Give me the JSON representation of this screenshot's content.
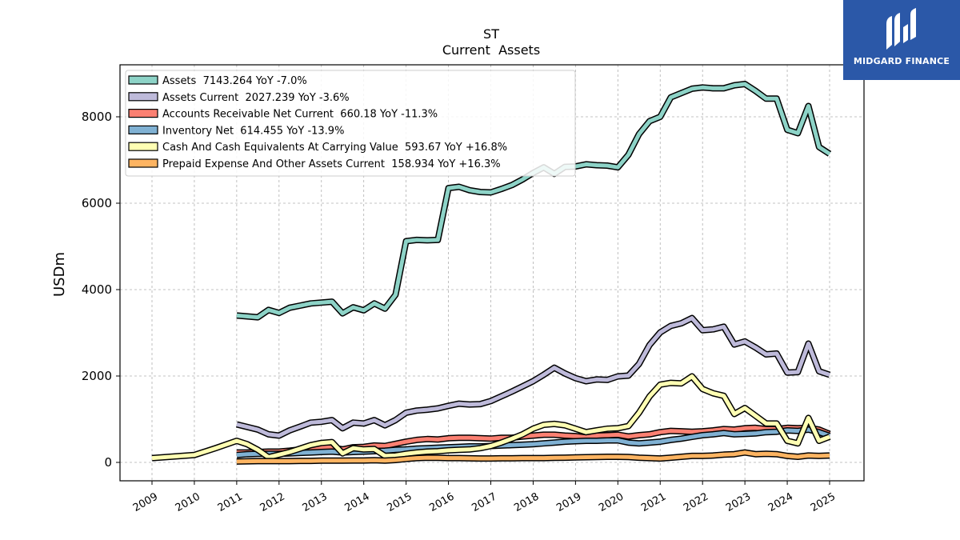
{
  "brand": {
    "name": "MIDGARD FINANCE",
    "logo_icon": "midgard-logo-icon",
    "color": "#2b58a8"
  },
  "chart_data": {
    "type": "line",
    "title": "ST",
    "subtitle": "Current  Assets",
    "xlabel": "",
    "ylabel": "USDm",
    "xlim": [
      2008.25,
      2025.85
    ],
    "ylim": [
      -420,
      9200
    ],
    "yticks": [
      0,
      2000,
      4000,
      6000,
      8000
    ],
    "xticks": [
      "2009",
      "2010",
      "2011",
      "2012",
      "2013",
      "2014",
      "2015",
      "2016",
      "2017",
      "2018",
      "2019",
      "2020",
      "2021",
      "2022",
      "2023",
      "2024",
      "2025"
    ],
    "grid": true,
    "legend_position": "top-left",
    "series": [
      {
        "name": "Assets",
        "legend": "Assets  7143.264 YoY -7.0%",
        "color": "#8dd3c7",
        "x": [
          2011.0,
          2011.25,
          2011.5,
          2011.75,
          2012.0,
          2012.25,
          2012.5,
          2012.75,
          2013.0,
          2013.25,
          2013.5,
          2013.75,
          2014.0,
          2014.25,
          2014.5,
          2014.75,
          2015.0,
          2015.25,
          2015.5,
          2015.75,
          2016.0,
          2016.25,
          2016.5,
          2016.75,
          2017.0,
          2017.25,
          2017.5,
          2017.75,
          2018.0,
          2018.25,
          2018.5,
          2018.75,
          2019.0,
          2019.25,
          2019.5,
          2019.75,
          2020.0,
          2020.25,
          2020.5,
          2020.75,
          2021.0,
          2021.25,
          2021.5,
          2021.75,
          2022.0,
          2022.25,
          2022.5,
          2022.75,
          2023.0,
          2023.25,
          2023.5,
          2023.75,
          2024.0,
          2024.25,
          2024.5,
          2024.75,
          2025.0
        ],
        "values": [
          3400,
          3380,
          3360,
          3530,
          3460,
          3580,
          3630,
          3680,
          3700,
          3720,
          3450,
          3590,
          3520,
          3680,
          3560,
          3880,
          5120,
          5150,
          5140,
          5150,
          6350,
          6380,
          6300,
          6260,
          6250,
          6330,
          6420,
          6550,
          6700,
          6830,
          6680,
          6840,
          6850,
          6900,
          6880,
          6870,
          6830,
          7120,
          7600,
          7900,
          8000,
          8450,
          8550,
          8650,
          8680,
          8660,
          8660,
          8730,
          8760,
          8600,
          8420,
          8420,
          7700,
          7620,
          8250,
          7300,
          7143
        ]
      },
      {
        "name": "Assets Current",
        "legend": "Assets Current  2027.239 YoY -3.6%",
        "color": "#bebada",
        "x": [
          2011.0,
          2011.25,
          2011.5,
          2011.75,
          2012.0,
          2012.25,
          2012.5,
          2012.75,
          2013.0,
          2013.25,
          2013.5,
          2013.75,
          2014.0,
          2014.25,
          2014.5,
          2014.75,
          2015.0,
          2015.25,
          2015.5,
          2015.75,
          2016.0,
          2016.25,
          2016.5,
          2016.75,
          2017.0,
          2017.25,
          2017.5,
          2017.75,
          2018.0,
          2018.25,
          2018.5,
          2018.75,
          2019.0,
          2019.25,
          2019.5,
          2019.75,
          2020.0,
          2020.25,
          2020.5,
          2020.75,
          2021.0,
          2021.25,
          2021.5,
          2021.75,
          2022.0,
          2022.25,
          2022.5,
          2022.75,
          2023.0,
          2023.25,
          2023.5,
          2023.75,
          2024.0,
          2024.25,
          2024.5,
          2024.75,
          2025.0
        ],
        "values": [
          880,
          820,
          760,
          650,
          620,
          740,
          830,
          920,
          940,
          980,
          790,
          920,
          900,
          980,
          860,
          980,
          1150,
          1200,
          1220,
          1250,
          1310,
          1360,
          1340,
          1350,
          1420,
          1530,
          1640,
          1760,
          1880,
          2030,
          2190,
          2060,
          1950,
          1880,
          1920,
          1910,
          1990,
          2010,
          2280,
          2720,
          3010,
          3160,
          3220,
          3340,
          3060,
          3080,
          3140,
          2730,
          2800,
          2660,
          2500,
          2520,
          2080,
          2090,
          2750,
          2110,
          2027
        ]
      },
      {
        "name": "Accounts Receivable Net Current",
        "legend": "Accounts Receivable Net Current  660.18 YoY -11.3%",
        "color": "#fb8072",
        "x": [
          2011.0,
          2011.25,
          2011.5,
          2011.75,
          2012.0,
          2012.25,
          2012.5,
          2012.75,
          2013.0,
          2013.25,
          2013.5,
          2013.75,
          2014.0,
          2014.25,
          2014.5,
          2014.75,
          2015.0,
          2015.25,
          2015.5,
          2015.75,
          2016.0,
          2016.25,
          2016.5,
          2016.75,
          2017.0,
          2017.25,
          2017.5,
          2017.75,
          2018.0,
          2018.25,
          2018.5,
          2018.75,
          2019.0,
          2019.25,
          2019.5,
          2019.75,
          2020.0,
          2020.25,
          2020.5,
          2020.75,
          2021.0,
          2021.25,
          2021.5,
          2021.75,
          2022.0,
          2022.25,
          2022.5,
          2022.75,
          2023.0,
          2023.25,
          2023.5,
          2023.75,
          2024.0,
          2024.25,
          2024.5,
          2024.75,
          2025.0
        ],
        "values": [
          230,
          230,
          240,
          250,
          250,
          270,
          300,
          330,
          340,
          350,
          300,
          350,
          360,
          390,
          380,
          430,
          480,
          520,
          540,
          530,
          560,
          570,
          570,
          560,
          550,
          570,
          570,
          600,
          620,
          640,
          640,
          620,
          610,
          580,
          620,
          630,
          640,
          600,
          630,
          650,
          700,
          730,
          720,
          710,
          720,
          740,
          770,
          760,
          790,
          800,
          770,
          770,
          800,
          790,
          800,
          760,
          660
        ]
      },
      {
        "name": "Inventory Net",
        "legend": "Inventory Net  614.455 YoY -13.9%",
        "color": "#80b1d3",
        "x": [
          2011.0,
          2011.25,
          2011.5,
          2011.75,
          2012.0,
          2012.25,
          2012.5,
          2012.75,
          2013.0,
          2013.25,
          2013.5,
          2013.75,
          2014.0,
          2014.25,
          2014.5,
          2014.75,
          2015.0,
          2015.25,
          2015.5,
          2015.75,
          2016.0,
          2016.25,
          2016.5,
          2016.75,
          2017.0,
          2017.25,
          2017.5,
          2017.75,
          2018.0,
          2018.25,
          2018.5,
          2018.75,
          2019.0,
          2019.25,
          2019.5,
          2019.75,
          2020.0,
          2020.25,
          2020.5,
          2020.75,
          2021.0,
          2021.25,
          2021.5,
          2021.75,
          2022.0,
          2022.25,
          2022.5,
          2022.75,
          2023.0,
          2023.25,
          2023.5,
          2023.75,
          2024.0,
          2024.25,
          2024.5,
          2024.75,
          2025.0
        ],
        "values": [
          170,
          190,
          200,
          200,
          200,
          210,
          220,
          230,
          240,
          250,
          230,
          240,
          250,
          260,
          270,
          290,
          300,
          320,
          330,
          340,
          350,
          360,
          370,
          370,
          380,
          390,
          400,
          410,
          420,
          440,
          460,
          480,
          490,
          500,
          500,
          510,
          510,
          460,
          440,
          460,
          480,
          520,
          550,
          590,
          630,
          650,
          680,
          650,
          660,
          670,
          700,
          710,
          740,
          730,
          760,
          700,
          614
        ]
      },
      {
        "name": "Cash And Cash Equivalents At Carrying Value",
        "legend": "Cash And Cash Equivalents At Carrying Value  593.67 YoY +16.8%",
        "color": "#ffffb3",
        "x": [
          2009.0,
          2010.0,
          2010.5,
          2011.0,
          2011.25,
          2011.5,
          2011.75,
          2012.0,
          2012.25,
          2012.5,
          2012.75,
          2013.0,
          2013.25,
          2013.5,
          2013.75,
          2014.0,
          2014.25,
          2014.5,
          2014.75,
          2015.0,
          2015.25,
          2015.5,
          2015.75,
          2016.0,
          2016.25,
          2016.5,
          2016.75,
          2017.0,
          2017.25,
          2017.5,
          2017.75,
          2018.0,
          2018.25,
          2018.5,
          2018.75,
          2019.0,
          2019.25,
          2019.5,
          2019.75,
          2020.0,
          2020.25,
          2020.5,
          2020.75,
          2021.0,
          2021.25,
          2021.5,
          2021.75,
          2022.0,
          2022.25,
          2022.5,
          2022.75,
          2023.0,
          2023.25,
          2023.5,
          2023.75,
          2024.0,
          2024.25,
          2024.5,
          2024.75,
          2025.0
        ],
        "values": [
          100,
          170,
          330,
          500,
          420,
          290,
          120,
          180,
          240,
          320,
          400,
          450,
          470,
          210,
          330,
          300,
          310,
          150,
          160,
          200,
          230,
          250,
          260,
          280,
          290,
          300,
          330,
          380,
          460,
          550,
          650,
          780,
          870,
          890,
          860,
          780,
          700,
          740,
          780,
          790,
          840,
          1150,
          1530,
          1800,
          1840,
          1830,
          1990,
          1700,
          1600,
          1540,
          1120,
          1260,
          1080,
          900,
          900,
          500,
          440,
          1030,
          500,
          594
        ]
      },
      {
        "name": "Prepaid Expense And Other Assets Current",
        "legend": "Prepaid Expense And Other Assets Current  158.934 YoY +16.3%",
        "color": "#fdb462",
        "x": [
          2011.0,
          2011.25,
          2011.5,
          2011.75,
          2012.0,
          2012.25,
          2012.5,
          2012.75,
          2013.0,
          2013.25,
          2013.5,
          2013.75,
          2014.0,
          2014.25,
          2014.5,
          2014.75,
          2015.0,
          2015.25,
          2015.5,
          2015.75,
          2016.0,
          2016.25,
          2016.5,
          2016.75,
          2017.0,
          2017.25,
          2017.5,
          2017.75,
          2018.0,
          2018.25,
          2018.5,
          2018.75,
          2019.0,
          2019.25,
          2019.5,
          2019.75,
          2020.0,
          2020.25,
          2020.5,
          2020.75,
          2021.0,
          2021.25,
          2021.5,
          2021.75,
          2022.0,
          2022.25,
          2022.5,
          2022.75,
          2023.0,
          2023.25,
          2023.5,
          2023.75,
          2024.0,
          2024.25,
          2024.5,
          2024.75,
          2025.0
        ],
        "values": [
          20,
          25,
          30,
          30,
          30,
          30,
          35,
          35,
          40,
          40,
          40,
          45,
          45,
          50,
          40,
          55,
          80,
          100,
          110,
          105,
          100,
          100,
          95,
          90,
          90,
          95,
          95,
          100,
          100,
          100,
          105,
          110,
          115,
          120,
          125,
          130,
          130,
          125,
          110,
          100,
          90,
          110,
          130,
          150,
          150,
          160,
          180,
          190,
          230,
          190,
          200,
          190,
          150,
          130,
          160,
          150,
          159
        ]
      }
    ]
  }
}
